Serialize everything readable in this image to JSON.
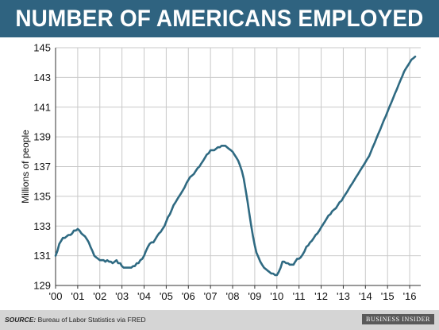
{
  "header": {
    "title": "NUMBER OF AMERICANS EMPLOYED"
  },
  "footer": {
    "source_label": "SOURCE:",
    "source_text": "Bureau of Labor Statistics via FRED",
    "brand": "BUSINESS INSIDER"
  },
  "colors": {
    "title_bar": "#2f6380",
    "line": "#2f6a82",
    "grid": "#c9c9c9",
    "footer_bar": "#d5d5d5"
  },
  "chart_data": {
    "type": "line",
    "title": "NUMBER OF AMERICANS EMPLOYED",
    "xlabel": "",
    "ylabel": "Millions of people",
    "xlim": [
      2000,
      2016.5
    ],
    "ylim": [
      129,
      145
    ],
    "x_ticks": [
      {
        "value": 2000,
        "label": "'00"
      },
      {
        "value": 2001,
        "label": "'01"
      },
      {
        "value": 2002,
        "label": "'02"
      },
      {
        "value": 2003,
        "label": "'03"
      },
      {
        "value": 2004,
        "label": "'04"
      },
      {
        "value": 2005,
        "label": "'05"
      },
      {
        "value": 2006,
        "label": "'06"
      },
      {
        "value": 2007,
        "label": "'07"
      },
      {
        "value": 2008,
        "label": "'08"
      },
      {
        "value": 2009,
        "label": "'09"
      },
      {
        "value": 2010,
        "label": "'10"
      },
      {
        "value": 2011,
        "label": "'11"
      },
      {
        "value": 2012,
        "label": "'12"
      },
      {
        "value": 2013,
        "label": "'13"
      },
      {
        "value": 2014,
        "label": "'14"
      },
      {
        "value": 2015,
        "label": "'15"
      },
      {
        "value": 2016,
        "label": "'16"
      }
    ],
    "y_ticks": [
      129,
      131,
      133,
      135,
      137,
      139,
      141,
      143,
      145
    ],
    "grid": true,
    "series": [
      {
        "x": [
          2000.0,
          2000.08,
          2000.17,
          2000.25,
          2000.33,
          2000.42,
          2000.5,
          2000.58,
          2000.67,
          2000.75,
          2000.83,
          2000.92,
          2001.0,
          2001.08,
          2001.17,
          2001.25,
          2001.33,
          2001.42,
          2001.5,
          2001.58,
          2001.67,
          2001.75,
          2001.83,
          2001.92,
          2002.0,
          2002.08,
          2002.17,
          2002.25,
          2002.33,
          2002.42,
          2002.5,
          2002.58,
          2002.67,
          2002.75,
          2002.83,
          2002.92,
          2003.0,
          2003.08,
          2003.17,
          2003.25,
          2003.33,
          2003.42,
          2003.5,
          2003.58,
          2003.67,
          2003.75,
          2003.83,
          2003.92,
          2004.0,
          2004.08,
          2004.17,
          2004.25,
          2004.33,
          2004.42,
          2004.5,
          2004.58,
          2004.67,
          2004.75,
          2004.83,
          2004.92,
          2005.0,
          2005.08,
          2005.17,
          2005.25,
          2005.33,
          2005.42,
          2005.5,
          2005.58,
          2005.67,
          2005.75,
          2005.83,
          2005.92,
          2006.0,
          2006.08,
          2006.17,
          2006.25,
          2006.33,
          2006.42,
          2006.5,
          2006.58,
          2006.67,
          2006.75,
          2006.83,
          2006.92,
          2007.0,
          2007.08,
          2007.17,
          2007.25,
          2007.33,
          2007.42,
          2007.5,
          2007.58,
          2007.67,
          2007.75,
          2007.83,
          2007.92,
          2008.0,
          2008.08,
          2008.17,
          2008.25,
          2008.33,
          2008.42,
          2008.5,
          2008.58,
          2008.67,
          2008.75,
          2008.83,
          2008.92,
          2009.0,
          2009.08,
          2009.17,
          2009.25,
          2009.33,
          2009.42,
          2009.5,
          2009.58,
          2009.67,
          2009.75,
          2009.83,
          2009.92,
          2010.0,
          2010.08,
          2010.17,
          2010.25,
          2010.33,
          2010.42,
          2010.5,
          2010.58,
          2010.67,
          2010.75,
          2010.83,
          2010.92,
          2011.0,
          2011.08,
          2011.17,
          2011.25,
          2011.33,
          2011.42,
          2011.5,
          2011.58,
          2011.67,
          2011.75,
          2011.83,
          2011.92,
          2012.0,
          2012.08,
          2012.17,
          2012.25,
          2012.33,
          2012.42,
          2012.5,
          2012.58,
          2012.67,
          2012.75,
          2012.83,
          2012.92,
          2013.0,
          2013.08,
          2013.17,
          2013.25,
          2013.33,
          2013.42,
          2013.5,
          2013.58,
          2013.67,
          2013.75,
          2013.83,
          2013.92,
          2014.0,
          2014.08,
          2014.17,
          2014.25,
          2014.33,
          2014.42,
          2014.5,
          2014.58,
          2014.67,
          2014.75,
          2014.83,
          2014.92,
          2015.0,
          2015.08,
          2015.17,
          2015.25,
          2015.33,
          2015.42,
          2015.5,
          2015.58,
          2015.67,
          2015.75,
          2015.83,
          2015.92,
          2016.0,
          2016.08,
          2016.17,
          2016.25
        ],
        "values": [
          131.0,
          131.3,
          131.8,
          132.0,
          132.2,
          132.2,
          132.3,
          132.4,
          132.4,
          132.5,
          132.7,
          132.7,
          132.8,
          132.7,
          132.5,
          132.4,
          132.3,
          132.1,
          131.9,
          131.6,
          131.3,
          131.0,
          130.9,
          130.8,
          130.7,
          130.7,
          130.7,
          130.6,
          130.7,
          130.6,
          130.6,
          130.5,
          130.6,
          130.7,
          130.5,
          130.5,
          130.3,
          130.2,
          130.2,
          130.2,
          130.2,
          130.2,
          130.3,
          130.3,
          130.5,
          130.5,
          130.7,
          130.8,
          131.0,
          131.3,
          131.6,
          131.8,
          131.9,
          131.9,
          132.1,
          132.3,
          132.5,
          132.6,
          132.8,
          133.0,
          133.3,
          133.6,
          133.8,
          134.1,
          134.4,
          134.6,
          134.8,
          135.0,
          135.2,
          135.4,
          135.6,
          135.9,
          136.1,
          136.3,
          136.4,
          136.5,
          136.7,
          136.9,
          137.0,
          137.2,
          137.4,
          137.6,
          137.8,
          137.9,
          138.1,
          138.1,
          138.1,
          138.2,
          138.3,
          138.3,
          138.4,
          138.4,
          138.4,
          138.3,
          138.2,
          138.1,
          138.0,
          137.8,
          137.6,
          137.4,
          137.1,
          136.7,
          136.2,
          135.5,
          134.7,
          133.9,
          133.1,
          132.3,
          131.7,
          131.2,
          130.9,
          130.6,
          130.4,
          130.2,
          130.1,
          130.0,
          129.9,
          129.8,
          129.8,
          129.7,
          129.7,
          129.9,
          130.2,
          130.6,
          130.6,
          130.5,
          130.5,
          130.4,
          130.4,
          130.4,
          130.6,
          130.8,
          130.8,
          130.9,
          131.1,
          131.3,
          131.6,
          131.7,
          131.9,
          132.0,
          132.2,
          132.4,
          132.5,
          132.7,
          132.9,
          133.1,
          133.3,
          133.5,
          133.7,
          133.8,
          134.0,
          134.1,
          134.2,
          134.4,
          134.6,
          134.7,
          134.9,
          135.1,
          135.3,
          135.5,
          135.7,
          135.9,
          136.1,
          136.3,
          136.5,
          136.7,
          136.9,
          137.1,
          137.3,
          137.5,
          137.7,
          138.0,
          138.3,
          138.6,
          138.9,
          139.2,
          139.5,
          139.8,
          140.1,
          140.4,
          140.7,
          141.0,
          141.3,
          141.6,
          141.9,
          142.2,
          142.5,
          142.8,
          143.1,
          143.4,
          143.6,
          143.8,
          144.0,
          144.2,
          144.3,
          144.4
        ]
      }
    ]
  }
}
